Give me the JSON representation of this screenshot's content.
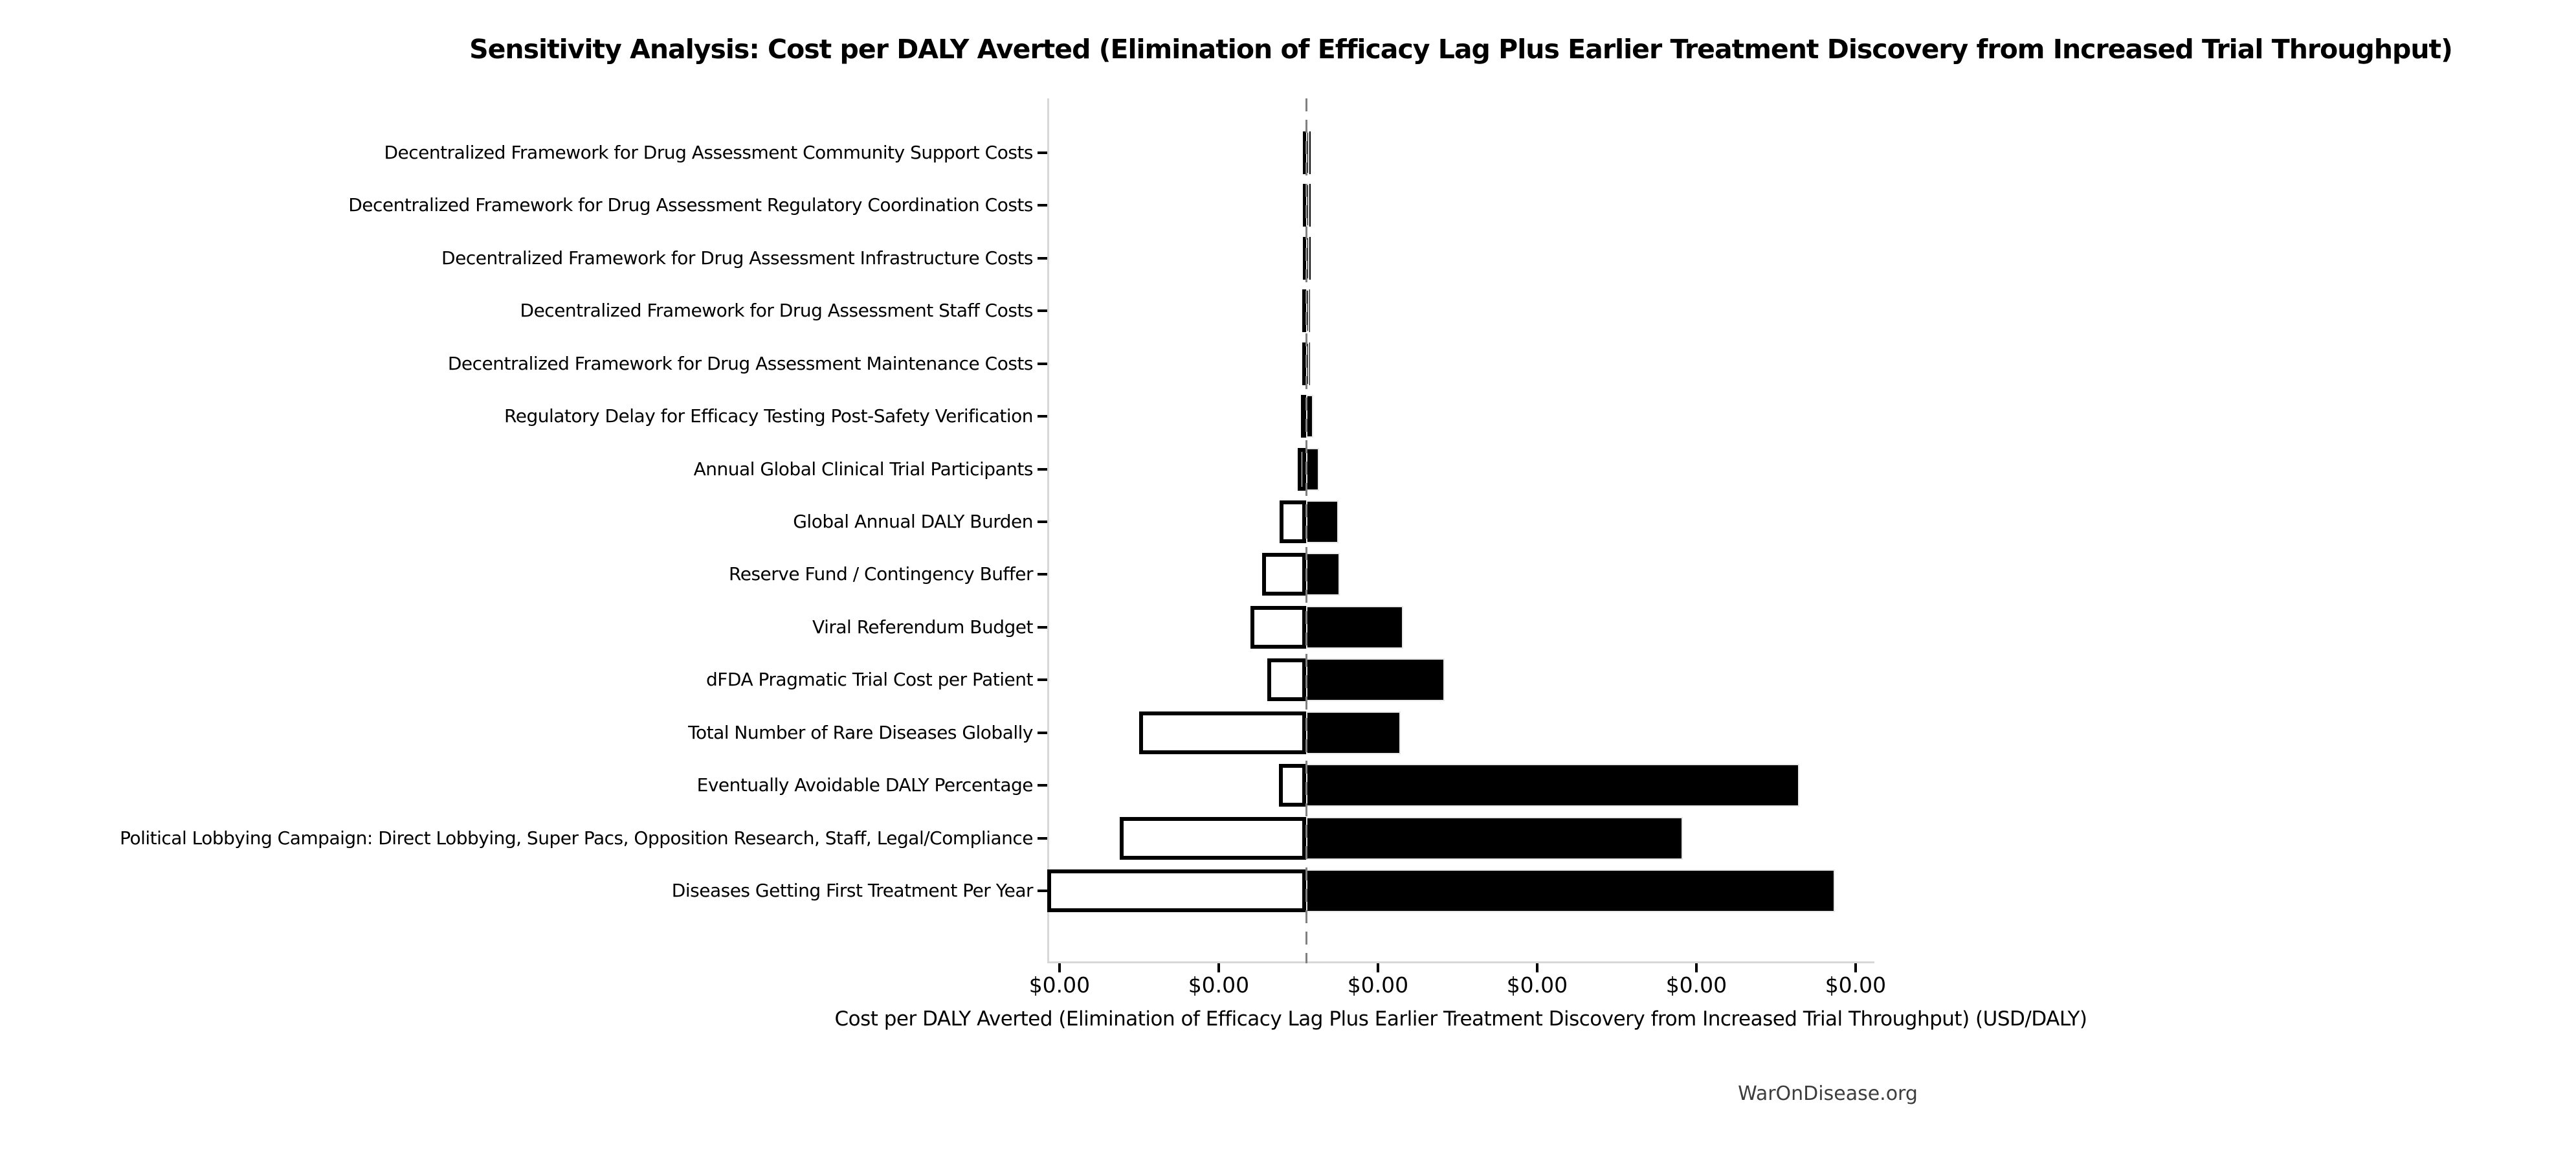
{
  "chart_data": {
    "type": "bar",
    "variant": "tornado-sensitivity",
    "orientation": "horizontal",
    "title": "Sensitivity Analysis: Cost per DALY Averted (Elimination of Efficacy Lag Plus Earlier Treatment Discovery from Increased Trial Throughput)",
    "xlabel": "Cost per DALY Averted (Elimination of Efficacy Lag Plus Earlier Treatment Discovery from Increased Trial Throughput) (USD/DALY)",
    "source_label": "WarOnDisease.org",
    "grid": false,
    "legend": false,
    "x_tick_labels": [
      "$0.00",
      "$0.00",
      "$0.00",
      "$0.00",
      "$0.00",
      "$0.00"
    ],
    "x_ticks_units": [
      -1.549,
      -0.549,
      0.451,
      1.451,
      2.451,
      3.451
    ],
    "xlim_units": [
      -1.626,
      3.569
    ],
    "baseline_unit": 0,
    "unit_note": "All x-axis tick labels render as $0.00 (values are sub-cent); bar extents are expressed in units of one x-tick interval, measured relative to the dashed vertical baseline.",
    "categories": [
      "Decentralized Framework for Drug Assessment Community Support Costs",
      "Decentralized Framework for Drug Assessment Regulatory Coordination Costs",
      "Decentralized Framework for Drug Assessment Infrastructure Costs",
      "Decentralized Framework for Drug Assessment Staff Costs",
      "Decentralized Framework for Drug Assessment Maintenance Costs",
      "Regulatory Delay for Efficacy Testing Post-Safety Verification",
      "Annual Global Clinical Trial Participants",
      "Global Annual DALY Burden",
      "Reserve Fund / Contingency Buffer",
      "Viral Referendum Budget",
      "dFDA Pragmatic Trial Cost per Patient",
      "Total Number of Rare Diseases Globally",
      "Eventually Avoidable DALY Percentage",
      "Political Lobbying Campaign: Direct Lobbying, Super Pacs, Opposition Research, Staff, Legal/Compliance",
      "Diseases Getting First Treatment Per Year"
    ],
    "series": [
      {
        "name": "low-side",
        "fill": "white",
        "values": [
          -0.02,
          -0.02,
          -0.02,
          -0.024,
          -0.024,
          -0.033,
          -0.053,
          -0.167,
          -0.276,
          -0.35,
          -0.244,
          -1.049,
          -0.171,
          -1.171,
          -1.626
        ]
      },
      {
        "name": "high-side",
        "fill": "black",
        "values": [
          0.02,
          0.02,
          0.02,
          0.02,
          0.02,
          0.045,
          0.081,
          0.203,
          0.211,
          0.61,
          0.87,
          0.593,
          3.098,
          2.366,
          3.321
        ]
      }
    ]
  },
  "colors": {
    "background": "#ffffff",
    "bar_high_fill": "#000000",
    "bar_high_edge": "#e8e8e8",
    "bar_low_fill": "#ffffff",
    "bar_low_edge": "#000000",
    "spine": "#d8d8d8",
    "baseline_dash": "#808080",
    "text": "#000000",
    "source_text": "#3d3d3d"
  }
}
